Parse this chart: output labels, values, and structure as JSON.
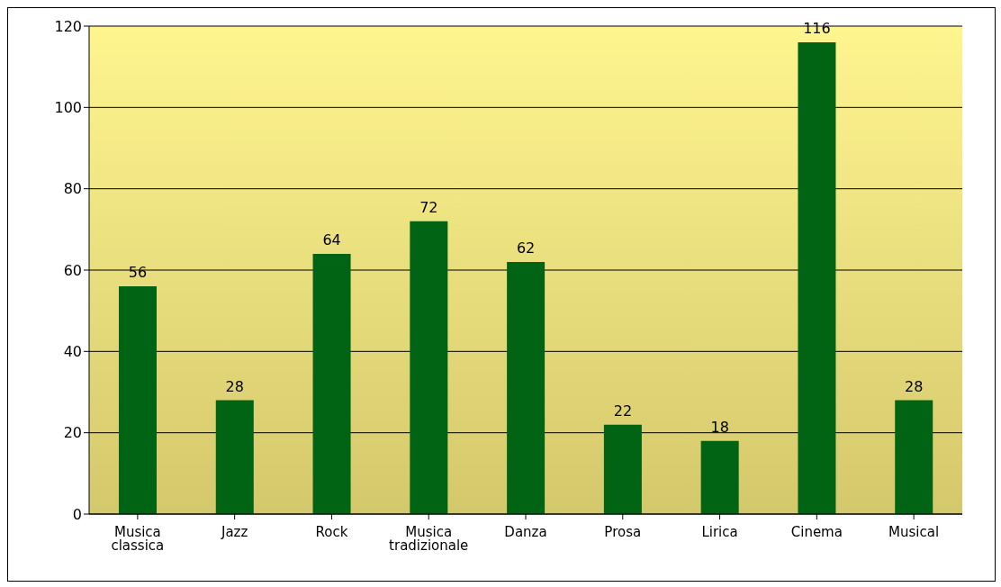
{
  "chart_data": {
    "type": "bar",
    "categories": [
      "Musica classica",
      "Jazz",
      "Rock",
      "Musica tradizionale",
      "Danza",
      "Prosa",
      "Lirica",
      "Cinema",
      "Musical"
    ],
    "values": [
      56,
      28,
      64,
      72,
      62,
      22,
      18,
      116,
      28
    ],
    "color": "#006414",
    "ylim": [
      0,
      120
    ],
    "yticks": [
      0,
      20,
      40,
      60,
      80,
      100,
      120
    ],
    "grid": "y",
    "data_labels": true
  }
}
